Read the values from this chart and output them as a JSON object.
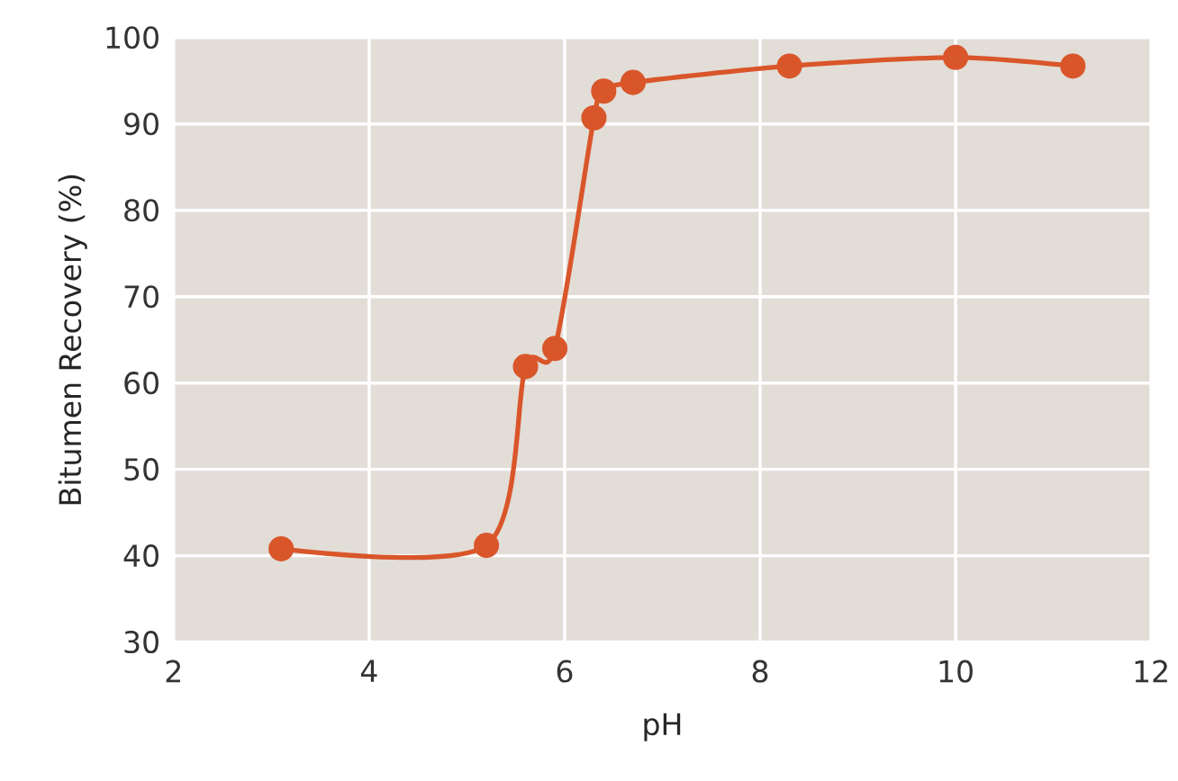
{
  "chart_data": {
    "type": "line",
    "xlabel": "pH",
    "ylabel": "Bitumen Recovery (%)",
    "x": [
      3.1,
      5.2,
      5.6,
      5.9,
      6.3,
      6.4,
      6.7,
      8.3,
      10,
      11.2
    ],
    "series": [
      {
        "color": "#d9562a",
        "values": [
          40.8,
          41.2,
          61.9,
          64,
          90.7,
          93.8,
          94.8,
          96.7,
          97.7,
          96.7
        ]
      }
    ],
    "xlim": [
      2,
      12
    ],
    "ylim": [
      30,
      100
    ],
    "xticks": [
      2,
      4,
      6,
      8,
      10,
      12
    ],
    "yticks": [
      30,
      40,
      50,
      60,
      70,
      80,
      90,
      100
    ],
    "grid": true,
    "marker": "circle",
    "line_style": "solid"
  }
}
